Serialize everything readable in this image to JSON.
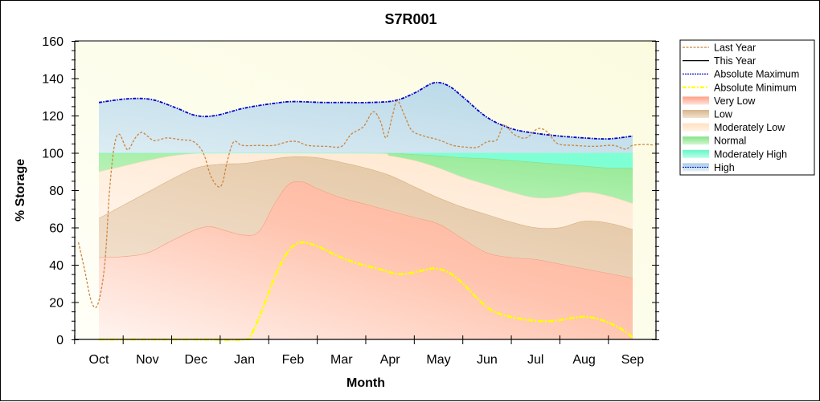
{
  "chart_data": {
    "type": "area",
    "title": "S7R001",
    "xlabel": "Month",
    "ylabel": "% Storage",
    "ylim": [
      0,
      160
    ],
    "yticks": [
      "0",
      "20",
      "40",
      "60",
      "80",
      "100",
      "120",
      "140",
      "160"
    ],
    "categories": [
      "Oct",
      "Nov",
      "Dec",
      "Jan",
      "Feb",
      "Mar",
      "Apr",
      "May",
      "Jun",
      "Jul",
      "Aug",
      "Sep"
    ],
    "x_note": "x values are month index (Oct = 0 ... Sep = 11)",
    "grid": false,
    "legend_position": "right",
    "colors": {
      "last_year": "#cd853f",
      "this_year": "#000000",
      "absolute_maximum": "#0000cd",
      "absolute_minimum": "#ffff00",
      "very_low": "#ffb39a",
      "low": "#e4c49f",
      "moderately_low": "#ffe8d0",
      "normal": "#98eb98",
      "moderately_high": "#7fffd4",
      "high": "#bcdbe8"
    },
    "legend": [
      {
        "key": "last_year",
        "label": "Last Year",
        "style": "dashed-line"
      },
      {
        "key": "this_year",
        "label": "This Year",
        "style": "solid-line"
      },
      {
        "key": "absolute_maximum",
        "label": "Absolute Maximum",
        "style": "dotted-line"
      },
      {
        "key": "absolute_minimum",
        "label": "Absolute Minimum",
        "style": "dashdot-line"
      },
      {
        "key": "very_low",
        "label": "Very Low",
        "style": "band"
      },
      {
        "key": "low",
        "label": "Low",
        "style": "band"
      },
      {
        "key": "moderately_low",
        "label": "Moderately Low",
        "style": "band"
      },
      {
        "key": "normal",
        "label": "Normal",
        "style": "band"
      },
      {
        "key": "moderately_high",
        "label": "Moderately High",
        "style": "band"
      },
      {
        "key": "high",
        "label": "High",
        "style": "band-dotted"
      }
    ],
    "series": [
      {
        "name": "Absolute Maximum",
        "key": "absolute_maximum",
        "points": [
          [
            0,
            127
          ],
          [
            0.6,
            129
          ],
          [
            1.1,
            128.5
          ],
          [
            1.6,
            124
          ],
          [
            2,
            120
          ],
          [
            2.4,
            120
          ],
          [
            3,
            124
          ],
          [
            3.6,
            126.5
          ],
          [
            4,
            127.5
          ],
          [
            4.6,
            127
          ],
          [
            5,
            127
          ],
          [
            5.6,
            127
          ],
          [
            6.1,
            128
          ],
          [
            6.5,
            132
          ],
          [
            6.9,
            137.5
          ],
          [
            7.2,
            136
          ],
          [
            7.5,
            130
          ],
          [
            8,
            119
          ],
          [
            8.5,
            113
          ],
          [
            9,
            110.5
          ],
          [
            9.5,
            109
          ],
          [
            10,
            108
          ],
          [
            10.5,
            107.5
          ],
          [
            11,
            109
          ]
        ]
      },
      {
        "name": "High upper bound",
        "key": "high_top",
        "points": [
          [
            0,
            127
          ],
          [
            0.6,
            129
          ],
          [
            1.1,
            128.5
          ],
          [
            1.6,
            124
          ],
          [
            2,
            120
          ],
          [
            2.4,
            120
          ],
          [
            3,
            124
          ],
          [
            3.6,
            126.5
          ],
          [
            4,
            127.5
          ],
          [
            4.6,
            127
          ],
          [
            5,
            127
          ],
          [
            5.6,
            127
          ],
          [
            6.1,
            128
          ],
          [
            6.5,
            132
          ],
          [
            6.9,
            137.5
          ],
          [
            7.2,
            136
          ],
          [
            7.5,
            130
          ],
          [
            8,
            119
          ],
          [
            8.5,
            113
          ],
          [
            9,
            110.5
          ],
          [
            9.5,
            109
          ],
          [
            10,
            108
          ],
          [
            10.5,
            107.5
          ],
          [
            11,
            109
          ]
        ]
      },
      {
        "name": "Moderately High upper bound",
        "key": "modhigh_top",
        "points": [
          [
            0,
            100
          ],
          [
            11,
            100
          ]
        ]
      },
      {
        "name": "Normal upper bound",
        "key": "normal_top",
        "points": [
          [
            0,
            100
          ],
          [
            5.7,
            100
          ],
          [
            6.3,
            99.5
          ],
          [
            7,
            98.5
          ],
          [
            7.5,
            97.5
          ],
          [
            8,
            97
          ],
          [
            8.5,
            96
          ],
          [
            9,
            95
          ],
          [
            9.5,
            94
          ],
          [
            10,
            93
          ],
          [
            10.5,
            92
          ],
          [
            11,
            92
          ]
        ]
      },
      {
        "name": "Moderately Low upper bound",
        "key": "modlow_top",
        "points": [
          [
            0,
            90
          ],
          [
            0.5,
            93
          ],
          [
            1,
            96
          ],
          [
            1.5,
            98.5
          ],
          [
            2,
            99.8
          ],
          [
            2.5,
            100
          ],
          [
            5.6,
            100
          ],
          [
            6,
            98.5
          ],
          [
            6.5,
            96
          ],
          [
            7,
            92
          ],
          [
            7.5,
            87
          ],
          [
            8,
            83
          ],
          [
            8.5,
            79
          ],
          [
            9,
            76
          ],
          [
            9.5,
            76.5
          ],
          [
            10,
            79
          ],
          [
            10.5,
            77
          ],
          [
            11,
            73
          ]
        ]
      },
      {
        "name": "Low upper bound",
        "key": "low_top",
        "points": [
          [
            0,
            65
          ],
          [
            0.5,
            72
          ],
          [
            1,
            79
          ],
          [
            1.5,
            86
          ],
          [
            2,
            92
          ],
          [
            2.5,
            94
          ],
          [
            3,
            94.5
          ],
          [
            3.5,
            96.5
          ],
          [
            4,
            98
          ],
          [
            4.5,
            97.5
          ],
          [
            5,
            95
          ],
          [
            5.5,
            92
          ],
          [
            6,
            88
          ],
          [
            6.5,
            82
          ],
          [
            7,
            76
          ],
          [
            7.5,
            71
          ],
          [
            8,
            67
          ],
          [
            8.5,
            63
          ],
          [
            9,
            60
          ],
          [
            9.5,
            60
          ],
          [
            10,
            63.5
          ],
          [
            10.5,
            62.5
          ],
          [
            11,
            59
          ]
        ]
      },
      {
        "name": "Very Low upper bound",
        "key": "verylow_top",
        "points": [
          [
            0,
            44
          ],
          [
            0.5,
            44.5
          ],
          [
            1,
            46.5
          ],
          [
            1.5,
            53
          ],
          [
            2,
            59
          ],
          [
            2.3,
            60.5
          ],
          [
            2.6,
            58.5
          ],
          [
            3,
            56
          ],
          [
            3.3,
            58
          ],
          [
            3.6,
            72
          ],
          [
            3.9,
            83
          ],
          [
            4.2,
            84.5
          ],
          [
            4.5,
            81
          ],
          [
            5,
            76
          ],
          [
            5.5,
            72.5
          ],
          [
            6,
            69
          ],
          [
            6.5,
            65.5
          ],
          [
            7,
            62
          ],
          [
            7.5,
            54
          ],
          [
            8,
            46.5
          ],
          [
            8.5,
            44
          ],
          [
            9,
            43
          ],
          [
            9.5,
            40.5
          ],
          [
            10,
            38
          ],
          [
            10.5,
            35.5
          ],
          [
            11,
            33
          ]
        ]
      },
      {
        "name": "Absolute Minimum",
        "key": "absolute_minimum",
        "points": [
          [
            0,
            0
          ],
          [
            2,
            0
          ],
          [
            3,
            0
          ],
          [
            3.15,
            3
          ],
          [
            3.4,
            18
          ],
          [
            3.6,
            32
          ],
          [
            3.8,
            43
          ],
          [
            4,
            50
          ],
          [
            4.2,
            52
          ],
          [
            4.5,
            50
          ],
          [
            4.9,
            45
          ],
          [
            5.3,
            41
          ],
          [
            5.8,
            37.5
          ],
          [
            6.2,
            35
          ],
          [
            6.6,
            36.5
          ],
          [
            6.9,
            38
          ],
          [
            7.2,
            36
          ],
          [
            7.5,
            30
          ],
          [
            7.8,
            22
          ],
          [
            8.1,
            15.5
          ],
          [
            8.5,
            12
          ],
          [
            9,
            10
          ],
          [
            9.4,
            10
          ],
          [
            9.9,
            12
          ],
          [
            10.2,
            11.5
          ],
          [
            10.5,
            9
          ],
          [
            10.8,
            5
          ],
          [
            11,
            1
          ]
        ]
      },
      {
        "name": "Last Year",
        "key": "last_year",
        "points": [
          [
            -0.42,
            52
          ],
          [
            -0.3,
            38
          ],
          [
            -0.15,
            20
          ],
          [
            -0.02,
            19
          ],
          [
            0.12,
            40
          ],
          [
            0.22,
            80
          ],
          [
            0.32,
            104
          ],
          [
            0.42,
            110
          ],
          [
            0.55,
            103
          ],
          [
            0.62,
            102
          ],
          [
            0.75,
            108
          ],
          [
            0.88,
            111
          ],
          [
            1.0,
            109
          ],
          [
            1.15,
            106.5
          ],
          [
            1.4,
            108
          ],
          [
            1.7,
            107
          ],
          [
            1.95,
            106
          ],
          [
            2.15,
            100
          ],
          [
            2.3,
            88
          ],
          [
            2.45,
            82
          ],
          [
            2.55,
            84
          ],
          [
            2.65,
            96
          ],
          [
            2.78,
            106
          ],
          [
            2.95,
            104
          ],
          [
            3.3,
            104
          ],
          [
            3.6,
            104
          ],
          [
            3.9,
            106
          ],
          [
            4.1,
            106
          ],
          [
            4.3,
            104
          ],
          [
            4.7,
            103.5
          ],
          [
            5.0,
            103.5
          ],
          [
            5.2,
            110
          ],
          [
            5.45,
            114
          ],
          [
            5.65,
            122
          ],
          [
            5.8,
            117
          ],
          [
            5.92,
            108
          ],
          [
            6.05,
            120
          ],
          [
            6.15,
            128
          ],
          [
            6.3,
            120
          ],
          [
            6.45,
            112
          ],
          [
            6.7,
            109
          ],
          [
            7.0,
            107
          ],
          [
            7.3,
            104
          ],
          [
            7.6,
            103
          ],
          [
            7.8,
            103
          ],
          [
            8.0,
            106
          ],
          [
            8.2,
            107
          ],
          [
            8.35,
            115
          ],
          [
            8.55,
            110
          ],
          [
            8.8,
            108
          ],
          [
            9.05,
            113
          ],
          [
            9.25,
            111
          ],
          [
            9.45,
            105
          ],
          [
            9.8,
            104
          ],
          [
            10.2,
            103.5
          ],
          [
            10.6,
            104
          ],
          [
            10.85,
            102
          ],
          [
            11.0,
            104
          ],
          [
            11.3,
            104.5
          ],
          [
            11.45,
            104
          ]
        ]
      }
    ],
    "bands_order_bottom_to_top": [
      "very_low",
      "low",
      "moderately_low",
      "normal",
      "moderately_high",
      "high"
    ]
  }
}
